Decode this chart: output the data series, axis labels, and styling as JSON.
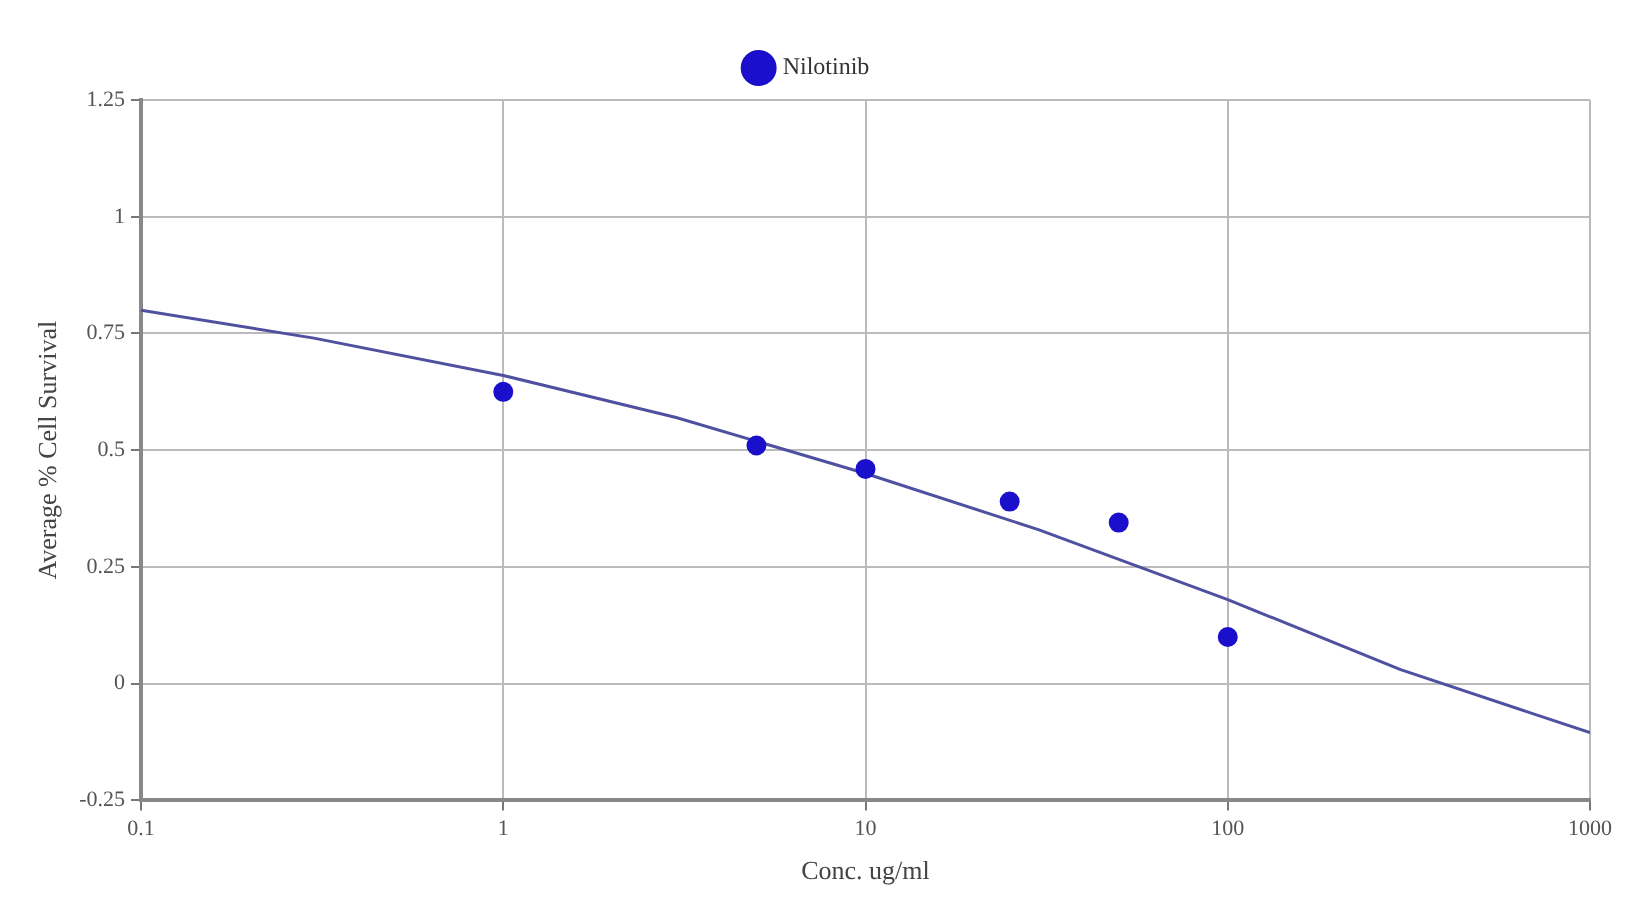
{
  "chart_data": {
    "type": "scatter",
    "xlabel": "Conc. ug/ml",
    "ylabel": "Average % Cell Survival",
    "log": "x",
    "xlim": [
      0.1,
      1000
    ],
    "xticks": [
      0.1,
      1,
      10,
      100,
      1000
    ],
    "ylim": [
      -0.25,
      1.25
    ],
    "yticks": [
      -0.25,
      0,
      0.25,
      0.5,
      0.75,
      1,
      1.25
    ],
    "grid": true,
    "legend": "top",
    "marker": "circle",
    "series": [
      {
        "name": "Nilotinib",
        "color": "#1a10cc",
        "x": [
          1,
          5,
          10,
          25,
          50,
          100
        ],
        "values": [
          0.625,
          0.51,
          0.46,
          0.39,
          0.345,
          0.1
        ]
      },
      {
        "type": "line",
        "color": "#5050a0",
        "marker": "none",
        "x": [
          0.1,
          0.3,
          1,
          3,
          10,
          30,
          100,
          300,
          1000
        ],
        "values": [
          0.8,
          0.74,
          0.66,
          0.57,
          0.45,
          0.33,
          0.18,
          0.03,
          -0.105
        ]
      }
    ]
  }
}
